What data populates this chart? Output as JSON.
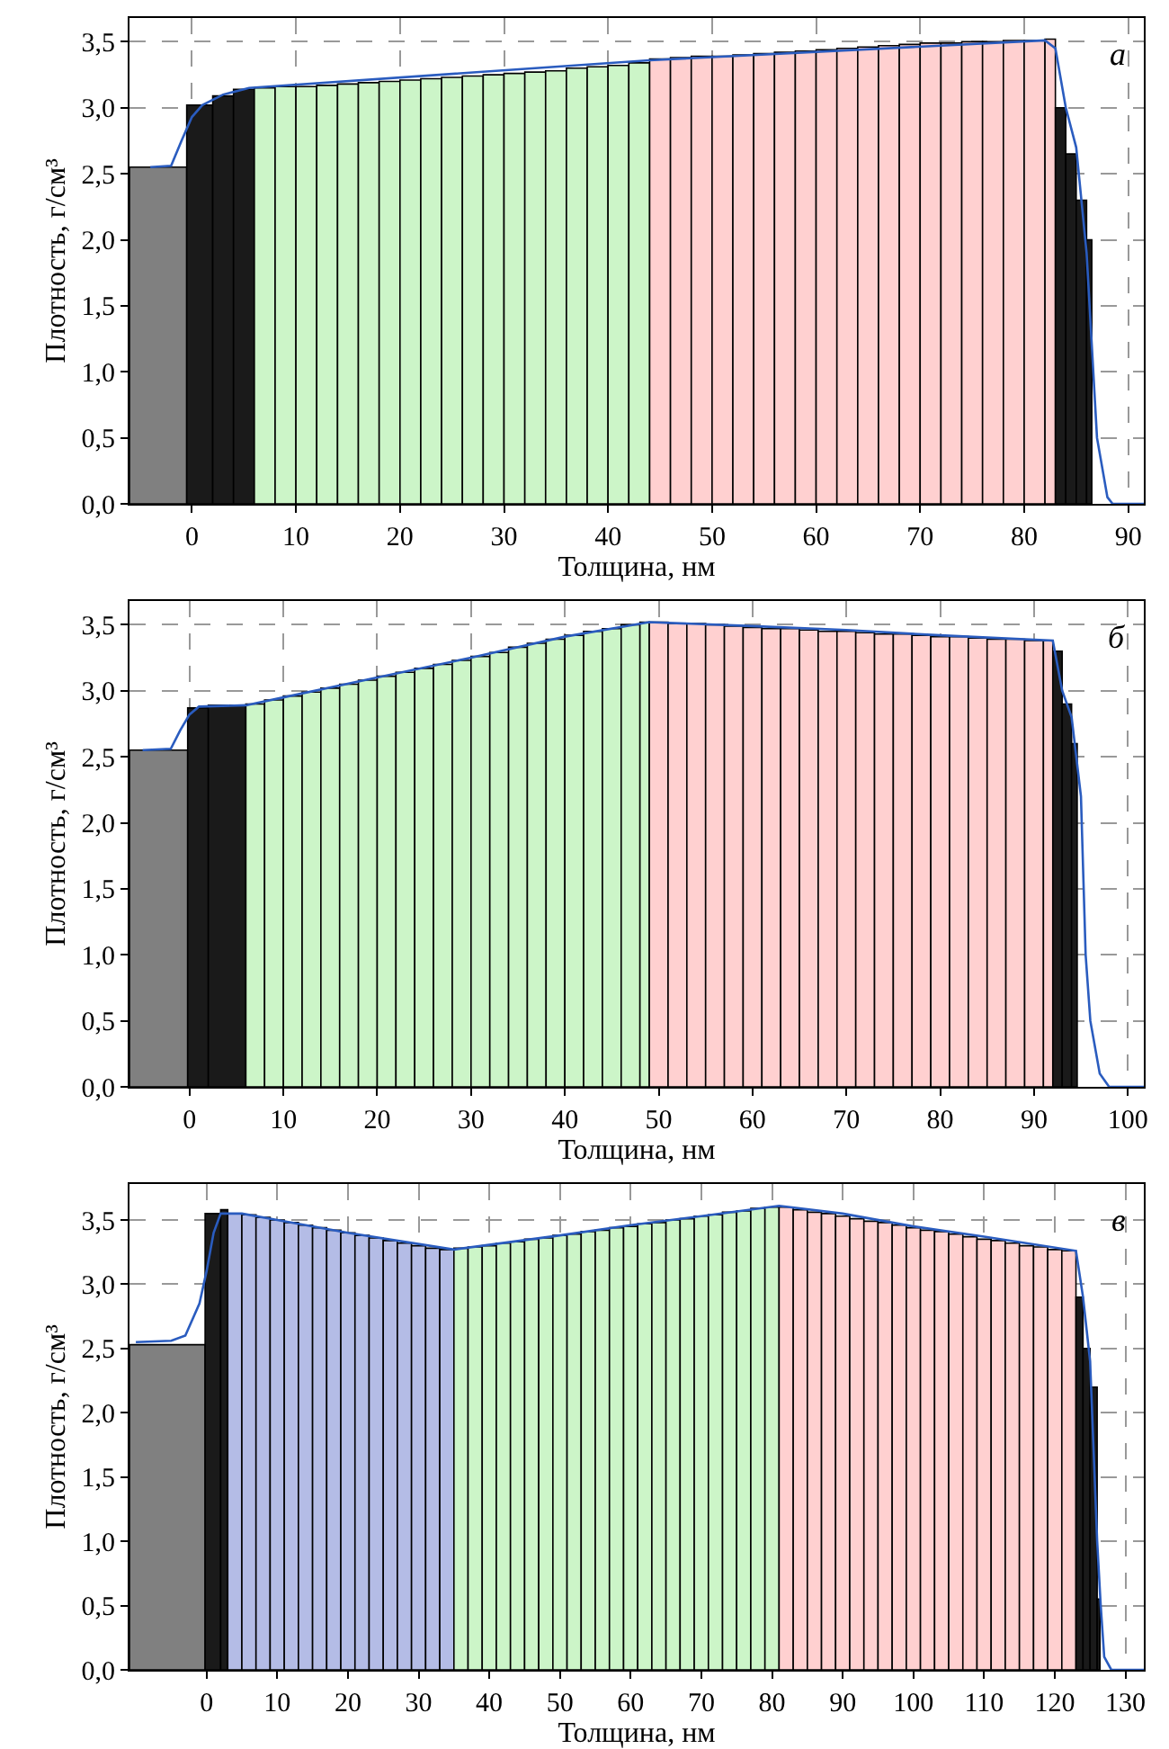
{
  "chart_data": [
    {
      "type": "histogram",
      "xlabel": "Толщина, нм",
      "ylabel": "Плотность, г/см³",
      "annotations": [
        "а"
      ],
      "grid": true,
      "xlim": [
        -6,
        91.5
      ],
      "xticks": [
        0,
        10,
        20,
        30,
        40,
        50,
        60,
        70,
        80,
        90
      ],
      "ylim": [
        0,
        3.68
      ],
      "yticks": [
        {
          "value": 0,
          "label": "0,0"
        },
        {
          "value": 0.5,
          "label": "0,5"
        },
        {
          "value": 1,
          "label": "1,0"
        },
        {
          "value": 1.5,
          "label": "1,5"
        },
        {
          "value": 2,
          "label": "2,0"
        },
        {
          "value": 2.5,
          "label": "2,5"
        },
        {
          "value": 3,
          "label": "3,0"
        },
        {
          "value": 3.5,
          "label": "3,5"
        }
      ],
      "series": [
        {
          "bins": [
            -6,
            -0.5,
            2,
            4,
            6,
            8,
            10,
            12,
            14,
            16,
            18,
            20,
            22,
            24,
            26,
            28,
            30,
            32,
            34,
            36,
            38,
            40,
            42,
            44,
            46,
            48,
            50,
            52,
            54,
            56,
            58,
            60,
            62,
            64,
            66,
            68,
            70,
            72,
            74,
            76,
            78,
            80,
            82,
            83,
            84,
            85,
            86,
            86.5
          ],
          "values": [
            2.55,
            3.02,
            3.09,
            3.14,
            3.15,
            3.16,
            3.16,
            3.17,
            3.18,
            3.19,
            3.2,
            3.21,
            3.22,
            3.23,
            3.24,
            3.25,
            3.26,
            3.27,
            3.28,
            3.3,
            3.31,
            3.32,
            3.34,
            3.37,
            3.38,
            3.39,
            3.39,
            3.4,
            3.41,
            3.42,
            3.43,
            3.44,
            3.45,
            3.46,
            3.47,
            3.48,
            3.49,
            3.49,
            3.5,
            3.5,
            3.51,
            3.51,
            3.52,
            3.0,
            2.65,
            2.3,
            2.0
          ],
          "colors": [
            "#808080",
            "#1a1a1a",
            "#1a1a1a",
            "#1a1a1a",
            "#ccf5c8",
            "#ccf5c8",
            "#ccf5c8",
            "#ccf5c8",
            "#ccf5c8",
            "#ccf5c8",
            "#ccf5c8",
            "#ccf5c8",
            "#ccf5c8",
            "#ccf5c8",
            "#ccf5c8",
            "#ccf5c8",
            "#ccf5c8",
            "#ccf5c8",
            "#ccf5c8",
            "#ccf5c8",
            "#ccf5c8",
            "#ccf5c8",
            "#ccf5c8",
            "#ffd0d0",
            "#ffd0d0",
            "#ffd0d0",
            "#ffd0d0",
            "#ffd0d0",
            "#ffd0d0",
            "#ffd0d0",
            "#ffd0d0",
            "#ffd0d0",
            "#ffd0d0",
            "#ffd0d0",
            "#ffd0d0",
            "#ffd0d0",
            "#ffd0d0",
            "#ffd0d0",
            "#ffd0d0",
            "#ffd0d0",
            "#ffd0d0",
            "#ffd0d0",
            "#ffd0d0",
            "#1a1a1a",
            "#1a1a1a",
            "#1a1a1a",
            "#1a1a1a"
          ]
        },
        {
          "type": "line",
          "color": "#2a5cbf",
          "x": [
            -4,
            -2,
            -1,
            0,
            1,
            3,
            5.5,
            44,
            82,
            83,
            84,
            85,
            86,
            87,
            88,
            88.5,
            91.5
          ],
          "values": [
            2.55,
            2.56,
            2.75,
            2.93,
            3.02,
            3.1,
            3.15,
            3.36,
            3.51,
            3.45,
            3.0,
            2.7,
            1.9,
            0.5,
            0.05,
            0,
            0
          ]
        }
      ]
    },
    {
      "type": "histogram",
      "xlabel": "Толщина, нм",
      "ylabel": "Плотность, г/см³",
      "annotations": [
        "б"
      ],
      "grid": true,
      "xlim": [
        -6.4,
        101.7
      ],
      "xticks": [
        0,
        10,
        20,
        30,
        40,
        50,
        60,
        70,
        80,
        90,
        100
      ],
      "ylim": [
        0,
        3.68
      ],
      "yticks": [
        {
          "value": 0,
          "label": "0,0"
        },
        {
          "value": 0.5,
          "label": "0,5"
        },
        {
          "value": 1,
          "label": "1,0"
        },
        {
          "value": 1.5,
          "label": "1,5"
        },
        {
          "value": 2,
          "label": "2,0"
        },
        {
          "value": 2.5,
          "label": "2,5"
        },
        {
          "value": 3,
          "label": "3,0"
        },
        {
          "value": 3.5,
          "label": "3,5"
        }
      ],
      "series": [
        {
          "bins": [
            -6.4,
            -0.2,
            2,
            6,
            8,
            10,
            12,
            14,
            16,
            18,
            20,
            22,
            24,
            26,
            28,
            30,
            32,
            34,
            36,
            38,
            40,
            42,
            44,
            46,
            48,
            49,
            51,
            53,
            55,
            57,
            59,
            61,
            63,
            65,
            67,
            69,
            71,
            73,
            75,
            77,
            79,
            81,
            83,
            85,
            87,
            89,
            91,
            92,
            93,
            94,
            94.6
          ],
          "values": [
            2.55,
            2.87,
            2.89,
            2.9,
            2.93,
            2.96,
            2.99,
            3.02,
            3.05,
            3.08,
            3.11,
            3.14,
            3.17,
            3.2,
            3.23,
            3.26,
            3.29,
            3.33,
            3.36,
            3.39,
            3.42,
            3.45,
            3.47,
            3.5,
            3.52,
            3.52,
            3.51,
            3.51,
            3.5,
            3.49,
            3.48,
            3.47,
            3.47,
            3.46,
            3.45,
            3.45,
            3.44,
            3.43,
            3.43,
            3.42,
            3.41,
            3.41,
            3.4,
            3.39,
            3.39,
            3.38,
            3.38,
            3.3,
            2.9,
            2.6
          ],
          "colors": [
            "#808080",
            "#1a1a1a",
            "#1a1a1a",
            "#ccf5c8",
            "#ccf5c8",
            "#ccf5c8",
            "#ccf5c8",
            "#ccf5c8",
            "#ccf5c8",
            "#ccf5c8",
            "#ccf5c8",
            "#ccf5c8",
            "#ccf5c8",
            "#ccf5c8",
            "#ccf5c8",
            "#ccf5c8",
            "#ccf5c8",
            "#ccf5c8",
            "#ccf5c8",
            "#ccf5c8",
            "#ccf5c8",
            "#ccf5c8",
            "#ccf5c8",
            "#ccf5c8",
            "#ccf5c8",
            "#ffd0d0",
            "#ffd0d0",
            "#ffd0d0",
            "#ffd0d0",
            "#ffd0d0",
            "#ffd0d0",
            "#ffd0d0",
            "#ffd0d0",
            "#ffd0d0",
            "#ffd0d0",
            "#ffd0d0",
            "#ffd0d0",
            "#ffd0d0",
            "#ffd0d0",
            "#ffd0d0",
            "#ffd0d0",
            "#ffd0d0",
            "#ffd0d0",
            "#ffd0d0",
            "#ffd0d0",
            "#ffd0d0",
            "#ffd0d0",
            "#1a1a1a",
            "#1a1a1a",
            "#1a1a1a"
          ]
        },
        {
          "type": "line",
          "color": "#2a5cbf",
          "x": [
            -5,
            -2,
            -1,
            0,
            1,
            6,
            10,
            20,
            30,
            40,
            49,
            60,
            70,
            80,
            92,
            93,
            94,
            95,
            95.5,
            96,
            97,
            98,
            101.7
          ],
          "values": [
            2.55,
            2.56,
            2.7,
            2.82,
            2.88,
            2.89,
            2.95,
            3.1,
            3.25,
            3.41,
            3.52,
            3.49,
            3.46,
            3.42,
            3.38,
            3.0,
            2.8,
            2.2,
            1.0,
            0.5,
            0.1,
            0,
            0
          ]
        }
      ]
    },
    {
      "type": "histogram",
      "xlabel": "Толщина, нм",
      "ylabel": "Плотность, г/см³",
      "annotations": [
        "в"
      ],
      "grid": true,
      "xlim": [
        -10.9,
        132.6
      ],
      "xticks": [
        0,
        10,
        20,
        30,
        40,
        50,
        60,
        70,
        80,
        90,
        100,
        110,
        120,
        130
      ],
      "ylim": [
        0,
        3.78
      ],
      "yticks": [
        {
          "value": 0,
          "label": "0,0"
        },
        {
          "value": 0.5,
          "label": "0,5"
        },
        {
          "value": 1,
          "label": "1,0"
        },
        {
          "value": 1.5,
          "label": "1,5"
        },
        {
          "value": 2,
          "label": "2,0"
        },
        {
          "value": 2.5,
          "label": "2,5"
        },
        {
          "value": 3,
          "label": "3,0"
        },
        {
          "value": 3.5,
          "label": "3,5"
        }
      ],
      "series": [
        {
          "bins": [
            -10.9,
            -0.2,
            2,
            3,
            5,
            7,
            9,
            11,
            13,
            15,
            17,
            19,
            21,
            23,
            25,
            27,
            29,
            31,
            33,
            35,
            37,
            39,
            41,
            43,
            45,
            47,
            49,
            51,
            53,
            55,
            57,
            59,
            61,
            63,
            65,
            67,
            69,
            71,
            73,
            75,
            77,
            79,
            81,
            83,
            85,
            87,
            89,
            91,
            93,
            95,
            97,
            99,
            101,
            103,
            105,
            107,
            109,
            111,
            113,
            115,
            117,
            119,
            121,
            123,
            124,
            125,
            126,
            126.4
          ],
          "values": [
            2.53,
            3.55,
            3.58,
            3.55,
            3.54,
            3.52,
            3.5,
            3.48,
            3.46,
            3.44,
            3.42,
            3.4,
            3.38,
            3.36,
            3.34,
            3.32,
            3.3,
            3.28,
            3.27,
            3.28,
            3.29,
            3.3,
            3.32,
            3.33,
            3.35,
            3.36,
            3.38,
            3.39,
            3.41,
            3.42,
            3.44,
            3.45,
            3.47,
            3.48,
            3.5,
            3.51,
            3.53,
            3.54,
            3.56,
            3.57,
            3.59,
            3.6,
            3.6,
            3.58,
            3.56,
            3.55,
            3.53,
            3.51,
            3.49,
            3.48,
            3.46,
            3.44,
            3.42,
            3.41,
            3.39,
            3.37,
            3.35,
            3.34,
            3.32,
            3.3,
            3.29,
            3.27,
            3.26,
            2.9,
            2.5,
            2.2,
            0.55
          ],
          "colors": [
            "#808080",
            "#1a1a1a",
            "#1a1a1a",
            "#b4bce6",
            "#b4bce6",
            "#b4bce6",
            "#b4bce6",
            "#b4bce6",
            "#b4bce6",
            "#b4bce6",
            "#b4bce6",
            "#b4bce6",
            "#b4bce6",
            "#b4bce6",
            "#b4bce6",
            "#b4bce6",
            "#b4bce6",
            "#b4bce6",
            "#b4bce6",
            "#ccf5c8",
            "#ccf5c8",
            "#ccf5c8",
            "#ccf5c8",
            "#ccf5c8",
            "#ccf5c8",
            "#ccf5c8",
            "#ccf5c8",
            "#ccf5c8",
            "#ccf5c8",
            "#ccf5c8",
            "#ccf5c8",
            "#ccf5c8",
            "#ccf5c8",
            "#ccf5c8",
            "#ccf5c8",
            "#ccf5c8",
            "#ccf5c8",
            "#ccf5c8",
            "#ccf5c8",
            "#ccf5c8",
            "#ccf5c8",
            "#ccf5c8",
            "#ffd0d0",
            "#ffd0d0",
            "#ffd0d0",
            "#ffd0d0",
            "#ffd0d0",
            "#ffd0d0",
            "#ffd0d0",
            "#ffd0d0",
            "#ffd0d0",
            "#ffd0d0",
            "#ffd0d0",
            "#ffd0d0",
            "#ffd0d0",
            "#ffd0d0",
            "#ffd0d0",
            "#ffd0d0",
            "#ffd0d0",
            "#ffd0d0",
            "#ffd0d0",
            "#ffd0d0",
            "#ffd0d0",
            "#1a1a1a",
            "#1a1a1a",
            "#1a1a1a",
            "#1a1a1a"
          ]
        },
        {
          "type": "line",
          "color": "#2a5cbf",
          "x": [
            -10,
            -5,
            -3,
            -1,
            0,
            1,
            2,
            5,
            10,
            20,
            35,
            50,
            60,
            70,
            81,
            90,
            100,
            110,
            123,
            124,
            125,
            126,
            126.5,
            127,
            128,
            132.6
          ],
          "values": [
            2.55,
            2.56,
            2.6,
            2.85,
            3.1,
            3.4,
            3.55,
            3.55,
            3.5,
            3.4,
            3.27,
            3.38,
            3.46,
            3.53,
            3.61,
            3.55,
            3.45,
            3.37,
            3.26,
            2.9,
            2.4,
            1.0,
            0.5,
            0.1,
            0,
            0
          ]
        }
      ]
    }
  ]
}
